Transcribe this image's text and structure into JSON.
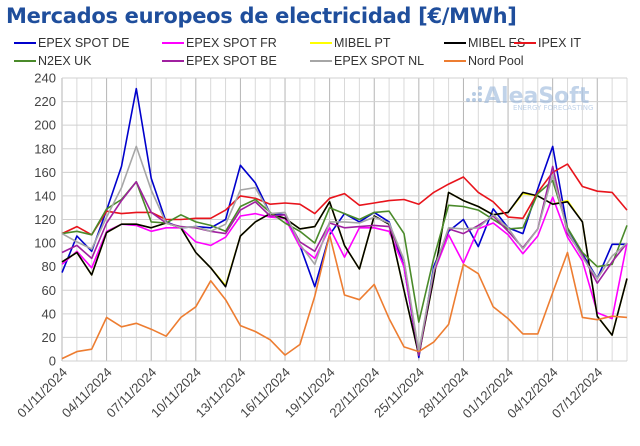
{
  "title": "Mercados europeos de electricidad [€/MWh]",
  "logo": {
    "name": "AleaSoft",
    "tagline": "ENERGY FORECASTING"
  },
  "chart_data": {
    "type": "line",
    "title": "Mercados europeos de electricidad [€/MWh]",
    "xlabel": "",
    "ylabel": "€/MWh",
    "ylim": [
      0,
      240
    ],
    "yticks": [
      0,
      20,
      40,
      60,
      80,
      100,
      120,
      140,
      160,
      180,
      200,
      220,
      240
    ],
    "grid": true,
    "legend_position": "top",
    "x": [
      "01/11/2024",
      "02/11/2024",
      "03/11/2024",
      "04/11/2024",
      "05/11/2024",
      "06/11/2024",
      "07/11/2024",
      "08/11/2024",
      "09/11/2024",
      "10/11/2024",
      "11/11/2024",
      "12/11/2024",
      "13/11/2024",
      "14/11/2024",
      "15/11/2024",
      "16/11/2024",
      "17/11/2024",
      "18/11/2024",
      "19/11/2024",
      "20/11/2024",
      "21/11/2024",
      "22/11/2024",
      "23/11/2024",
      "24/11/2024",
      "25/11/2024",
      "26/11/2024",
      "27/11/2024",
      "28/11/2024",
      "29/11/2024",
      "30/11/2024",
      "01/12/2024",
      "02/12/2024",
      "03/12/2024",
      "04/12/2024",
      "05/12/2024",
      "06/12/2024",
      "07/12/2024",
      "08/12/2024",
      "09/12/2024"
    ],
    "xtick_labels": [
      "01/11/2024",
      "04/11/2024",
      "07/11/2024",
      "10/11/2024",
      "13/11/2024",
      "16/11/2024",
      "19/11/2024",
      "22/11/2024",
      "25/11/2024",
      "28/11/2024",
      "01/12/2024",
      "04/12/2024",
      "07/12/2024"
    ],
    "series": [
      {
        "name": "EPEX SPOT DE",
        "color": "#0000cc",
        "values": [
          75,
          106,
          93,
          128,
          165,
          231,
          155,
          118,
          113,
          114,
          113,
          120,
          166,
          151,
          125,
          124,
          98,
          63,
          107,
          125,
          118,
          126,
          118,
          80,
          3,
          80,
          110,
          120,
          97,
          129,
          113,
          108,
          146,
          182,
          112,
          91,
          70,
          99,
          99
        ]
      },
      {
        "name": "EPEX SPOT FR",
        "color": "#ff00ff",
        "values": [
          82,
          93,
          79,
          110,
          116,
          115,
          110,
          113,
          113,
          101,
          98,
          105,
          123,
          125,
          122,
          121,
          97,
          87,
          113,
          88,
          113,
          113,
          110,
          80,
          5,
          75,
          107,
          83,
          112,
          117,
          107,
          91,
          106,
          139,
          105,
          85,
          41,
          36,
          100
        ]
      },
      {
        "name": "MIBEL PT",
        "color": "#ffff00",
        "values": [
          84,
          92,
          73,
          109,
          116,
          116,
          113,
          117,
          113,
          92,
          79,
          64,
          106,
          118,
          125,
          121,
          112,
          114,
          135,
          98,
          78,
          123,
          116,
          60,
          5,
          70,
          143,
          136,
          131,
          124,
          126,
          142,
          140,
          133,
          136,
          118,
          38,
          22,
          70
        ]
      },
      {
        "name": "MIBEL ES",
        "color": "#000000",
        "values": [
          84,
          92,
          73,
          109,
          116,
          116,
          113,
          117,
          113,
          92,
          79,
          63,
          106,
          118,
          125,
          121,
          112,
          114,
          135,
          98,
          78,
          123,
          116,
          60,
          5,
          70,
          143,
          136,
          131,
          124,
          126,
          143,
          140,
          133,
          135,
          118,
          38,
          22,
          70
        ]
      },
      {
        "name": "IPEX IT",
        "color": "#e8141c",
        "values": [
          108,
          114,
          107,
          127,
          125,
          126,
          126,
          120,
          120,
          121,
          121,
          128,
          140,
          138,
          133,
          134,
          133,
          125,
          138,
          142,
          132,
          134,
          136,
          137,
          133,
          143,
          150,
          156,
          143,
          135,
          122,
          121,
          143,
          160,
          167,
          148,
          144,
          143,
          128
        ]
      },
      {
        "name": "N2EX UK",
        "color": "#4a8a2a",
        "values": [
          108,
          110,
          107,
          129,
          137,
          152,
          118,
          117,
          124,
          118,
          115,
          110,
          131,
          137,
          126,
          117,
          110,
          100,
          130,
          125,
          120,
          126,
          127,
          108,
          33,
          87,
          132,
          131,
          128,
          120,
          112,
          113,
          142,
          153,
          113,
          92,
          80,
          82,
          115
        ]
      },
      {
        "name": "EPEX SPOT BE",
        "color": "#a020a0",
        "values": [
          92,
          98,
          87,
          117,
          136,
          152,
          126,
          117,
          114,
          113,
          110,
          108,
          128,
          135,
          123,
          124,
          101,
          93,
          117,
          113,
          114,
          115,
          114,
          85,
          5,
          75,
          112,
          108,
          115,
          123,
          110,
          96,
          112,
          165,
          108,
          90,
          66,
          84,
          100
        ]
      },
      {
        "name": "EPEX SPOT NL",
        "color": "#a6a6a6",
        "values": [
          108,
          101,
          95,
          122,
          147,
          182,
          145,
          117,
          113,
          114,
          110,
          116,
          145,
          147,
          125,
          126,
          99,
          82,
          118,
          118,
          117,
          122,
          117,
          86,
          8,
          77,
          113,
          112,
          113,
          124,
          113,
          95,
          112,
          158,
          110,
          88,
          70,
          89,
          100
        ]
      },
      {
        "name": "Nord Pool",
        "color": "#ed7d31",
        "values": [
          2,
          8,
          10,
          37,
          29,
          32,
          27,
          21,
          37,
          46,
          68,
          52,
          30,
          25,
          18,
          5,
          14,
          55,
          107,
          56,
          52,
          65,
          36,
          12,
          8,
          16,
          31,
          82,
          74,
          46,
          36,
          23,
          23,
          58,
          92,
          37,
          35,
          38,
          37
        ]
      }
    ]
  }
}
